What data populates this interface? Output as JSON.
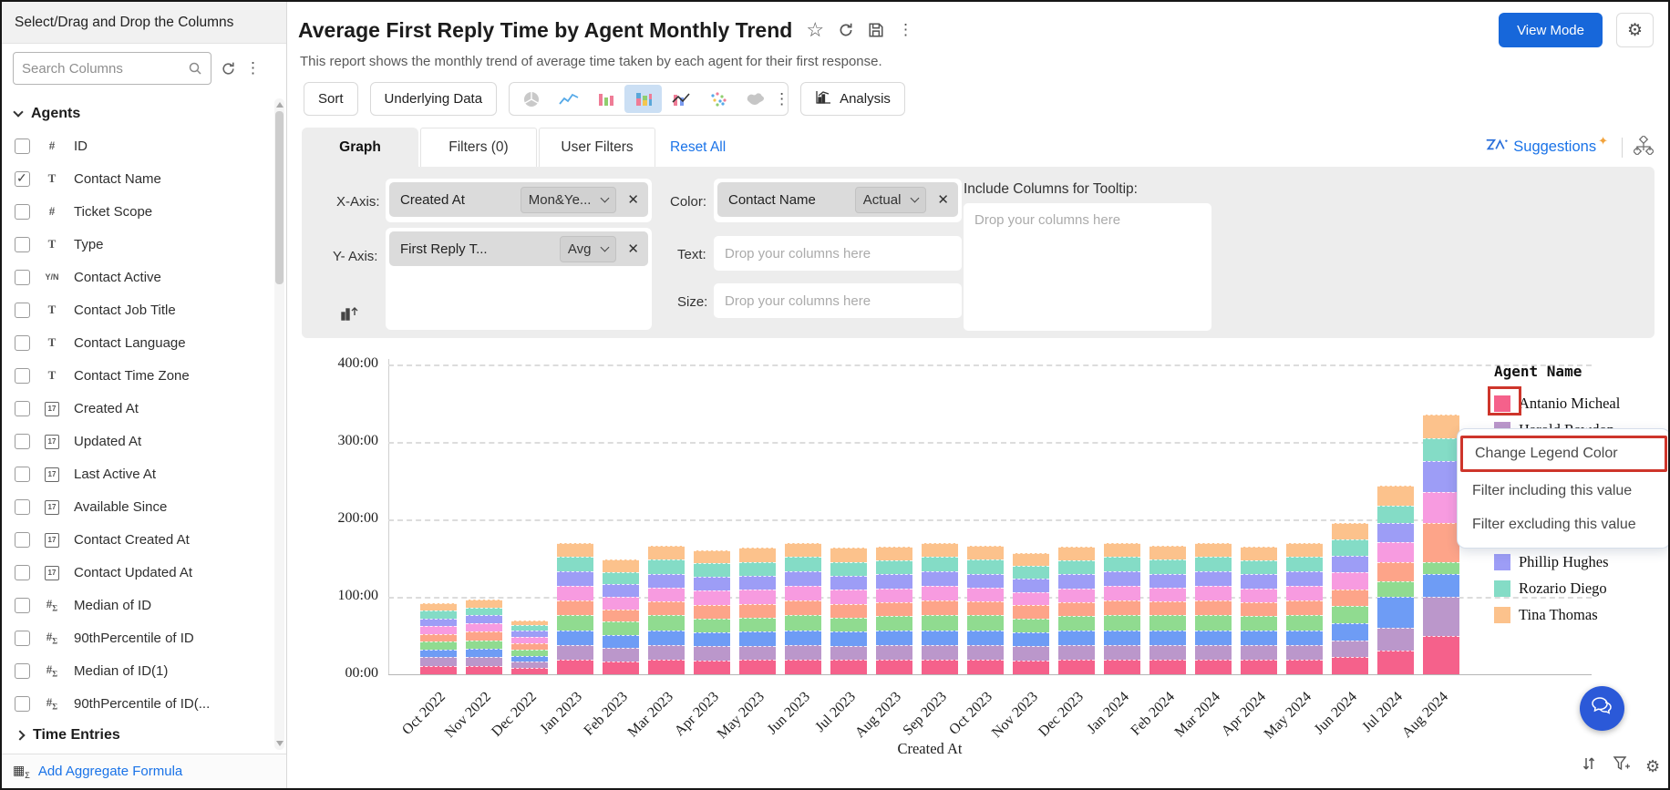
{
  "sidebar": {
    "title": "Select/Drag and Drop the Columns",
    "search_placeholder": "Search Columns",
    "sections": [
      {
        "label": "Agents",
        "expanded": true,
        "items": [
          {
            "label": "ID",
            "type": "num",
            "checked": false
          },
          {
            "label": "Contact Name",
            "type": "text",
            "checked": true
          },
          {
            "label": "Ticket Scope",
            "type": "num",
            "checked": false
          },
          {
            "label": "Type",
            "type": "text",
            "checked": false
          },
          {
            "label": "Contact Active",
            "type": "bool",
            "checked": false
          },
          {
            "label": "Contact Job Title",
            "type": "text",
            "checked": false
          },
          {
            "label": "Contact Language",
            "type": "text",
            "checked": false
          },
          {
            "label": "Contact Time Zone",
            "type": "text",
            "checked": false
          },
          {
            "label": "Created At",
            "type": "date",
            "checked": false
          },
          {
            "label": "Updated At",
            "type": "date",
            "checked": false
          },
          {
            "label": "Last Active At",
            "type": "date",
            "checked": false
          },
          {
            "label": "Available Since",
            "type": "date",
            "checked": false
          },
          {
            "label": "Contact Created At",
            "type": "date",
            "checked": false
          },
          {
            "label": "Contact Updated At",
            "type": "date",
            "checked": false
          },
          {
            "label": "Median of ID",
            "type": "agg",
            "checked": false
          },
          {
            "label": "90thPercentile of ID",
            "type": "agg",
            "checked": false
          },
          {
            "label": "Median of ID(1)",
            "type": "agg",
            "checked": false
          },
          {
            "label": "90thPercentile of ID(...",
            "type": "agg",
            "checked": false
          }
        ]
      },
      {
        "label": "Time Entries",
        "expanded": false,
        "items": []
      }
    ],
    "footer_label": "Add Aggregate Formula"
  },
  "header": {
    "title": "Average First Reply Time by Agent Monthly Trend",
    "subtitle": "This report shows the monthly trend of average time taken by each agent for their first response.",
    "view_mode_label": "View Mode"
  },
  "toolbar": {
    "sort_label": "Sort",
    "underlying_data_label": "Underlying Data",
    "analysis_label": "Analysis",
    "chart_types": [
      "pie",
      "line",
      "bar",
      "stacked-bar",
      "combo",
      "scatter",
      "map"
    ],
    "selected_chart_type": "stacked-bar"
  },
  "tabs": {
    "items": [
      "Graph",
      "Filters (0)",
      "User Filters"
    ],
    "active": "Graph",
    "reset_all_label": "Reset All",
    "suggestions_label": "Suggestions"
  },
  "config": {
    "x_axis": {
      "label": "X-Axis:",
      "column": "Created At",
      "aggregation": "Mon&Ye..."
    },
    "y_axis": {
      "label": "Y- Axis:",
      "column": "First Reply T...",
      "aggregation": "Avg"
    },
    "color": {
      "label": "Color:",
      "column": "Contact Name",
      "aggregation": "Actual"
    },
    "text": {
      "label": "Text:",
      "placeholder": "Drop your columns here"
    },
    "size": {
      "label": "Size:",
      "placeholder": "Drop your columns here"
    },
    "tooltip": {
      "label": "Include Columns for Tooltip:",
      "placeholder": "Drop your columns here"
    }
  },
  "context_menu": {
    "items": [
      "Change Legend Color",
      "Filter including this value",
      "Filter excluding this value"
    ],
    "highlighted": "Change Legend Color"
  },
  "annotation": {
    "color": "#ce352b"
  },
  "chart_data": {
    "type": "bar",
    "stacked": true,
    "title": "",
    "xlabel": "Created At",
    "ylabel": "",
    "legend_title": "Agent Name",
    "legend_position": "right",
    "grid": "dashed-horizontal",
    "ylim": [
      0,
      400
    ],
    "y_ticks": [
      "400:00",
      "300:00",
      "200:00",
      "100:00",
      "00:00"
    ],
    "x": [
      "Oct 2022",
      "Nov 2022",
      "Dec 2022",
      "Jan 2023",
      "Feb 2023",
      "Mar 2023",
      "Apr 2023",
      "May 2023",
      "Jun 2023",
      "Jul 2023",
      "Aug 2023",
      "Sep 2023",
      "Oct 2023",
      "Nov 2023",
      "Dec 2023",
      "Jan 2024",
      "Feb 2024",
      "Mar 2024",
      "Apr 2024",
      "May 2024",
      "Jun 2024",
      "Jul 2024",
      "Aug 2024"
    ],
    "note": "values estimated from pixels in hh:mm units where 100 = tick 100:00; series listed bottom-to-top of the stack; names of four series are hidden behind the open context menu",
    "series": [
      {
        "name": "Antanio Micheal",
        "color": "#f5618b",
        "legend_visible": true,
        "values": [
          11,
          11,
          8,
          19,
          17,
          19,
          18,
          19,
          19,
          19,
          19,
          19,
          19,
          18,
          19,
          19,
          19,
          19,
          19,
          19,
          22,
          30,
          50
        ]
      },
      {
        "name": "Harold Rawdon",
        "color": "#bb97cb",
        "legend_visible": true,
        "values": [
          11,
          11,
          8,
          19,
          17,
          19,
          18,
          18,
          19,
          18,
          19,
          19,
          19,
          18,
          19,
          19,
          19,
          19,
          19,
          19,
          22,
          30,
          50
        ]
      },
      {
        "name": "",
        "color": "#6e9cf5",
        "legend_visible": false,
        "values": [
          10,
          11,
          8,
          19,
          17,
          19,
          18,
          18,
          19,
          18,
          19,
          19,
          19,
          18,
          19,
          19,
          19,
          19,
          19,
          19,
          22,
          40,
          30
        ]
      },
      {
        "name": "",
        "color": "#90db90",
        "legend_visible": false,
        "values": [
          10,
          11,
          8,
          19,
          17,
          19,
          18,
          18,
          19,
          18,
          18,
          19,
          19,
          18,
          18,
          19,
          19,
          19,
          18,
          19,
          22,
          20,
          15
        ]
      },
      {
        "name": "",
        "color": "#fda489",
        "legend_visible": false,
        "values": [
          10,
          11,
          8,
          19,
          16,
          18,
          18,
          18,
          19,
          18,
          18,
          19,
          18,
          17,
          18,
          19,
          18,
          19,
          18,
          19,
          22,
          25,
          50
        ]
      },
      {
        "name": "",
        "color": "#f79be0",
        "legend_visible": false,
        "values": [
          10,
          11,
          8,
          19,
          16,
          18,
          18,
          18,
          19,
          18,
          18,
          19,
          18,
          17,
          18,
          19,
          18,
          19,
          18,
          19,
          22,
          25,
          40
        ]
      },
      {
        "name": "Phillip Hughes",
        "color": "#9d9df6",
        "legend_visible": true,
        "values": [
          10,
          10,
          8,
          19,
          16,
          18,
          18,
          18,
          19,
          18,
          18,
          19,
          18,
          17,
          18,
          19,
          18,
          19,
          18,
          19,
          21,
          25,
          40
        ]
      },
      {
        "name": "Rozario Diego",
        "color": "#84dcc6",
        "legend_visible": true,
        "values": [
          10,
          10,
          7,
          19,
          16,
          18,
          17,
          18,
          19,
          18,
          18,
          19,
          18,
          17,
          18,
          19,
          18,
          19,
          18,
          19,
          21,
          23,
          30
        ]
      },
      {
        "name": "Tina Thomas",
        "color": "#fcc28c",
        "legend_visible": true,
        "values": [
          10,
          10,
          7,
          18,
          16,
          18,
          17,
          18,
          18,
          18,
          18,
          18,
          18,
          17,
          18,
          18,
          18,
          18,
          18,
          18,
          21,
          25,
          30
        ]
      }
    ]
  }
}
